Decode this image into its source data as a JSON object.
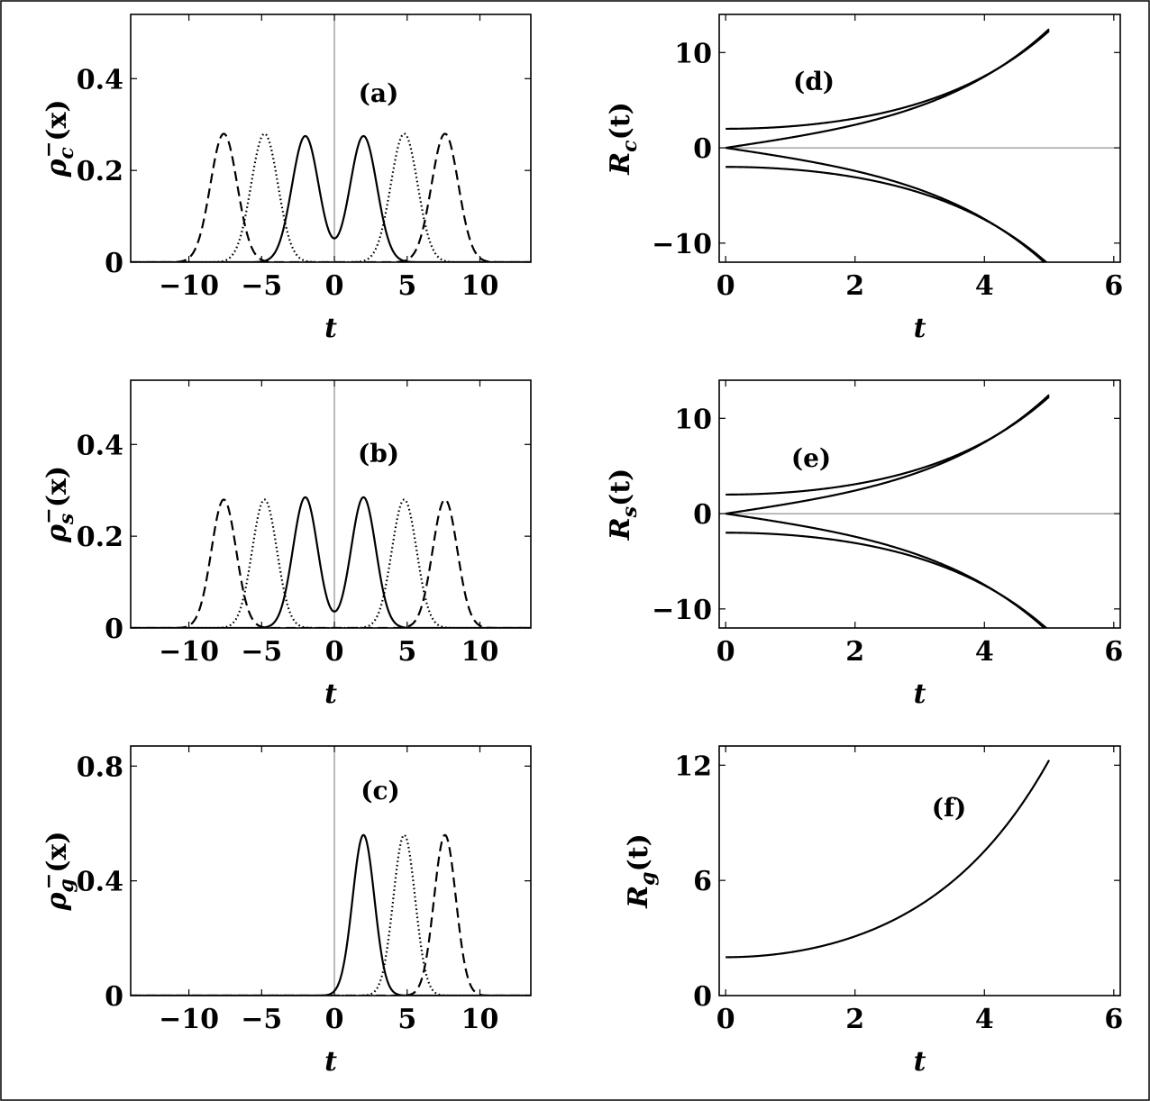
{
  "chart_data": [
    {
      "id": "a",
      "type": "line",
      "panel_label": "(a)",
      "xlabel": "t",
      "ylabel_parts": [
        "ρ",
        "c",
        "−",
        "(x)"
      ],
      "xlim": [
        -14,
        13.5
      ],
      "ylim": [
        0,
        0.54
      ],
      "xticks": [
        -10,
        -5,
        0,
        5,
        10
      ],
      "xtick_labels": [
        "−10",
        "−5",
        "0",
        "5",
        "10"
      ],
      "yticks": [
        0,
        0.2,
        0.4
      ],
      "ytick_labels": [
        "0",
        "0.2",
        "0.4"
      ],
      "zero_lines": [
        "x"
      ],
      "series": [
        {
          "style": "solid",
          "shape": "gauss",
          "centers": [
            -2,
            2
          ],
          "amplitude": 0.275,
          "sigma": 0.92
        },
        {
          "style": "dotted",
          "shape": "gauss",
          "centers": [
            -4.8,
            4.8
          ],
          "amplitude": 0.28,
          "sigma": 0.92
        },
        {
          "style": "dashed",
          "shape": "gauss",
          "centers": [
            -7.6,
            7.6
          ],
          "amplitude": 0.28,
          "sigma": 0.92
        }
      ]
    },
    {
      "id": "b",
      "type": "line",
      "panel_label": "(b)",
      "xlabel": "t",
      "ylabel_parts": [
        "ρ",
        "s",
        "−",
        "(x)"
      ],
      "xlim": [
        -14,
        13.5
      ],
      "ylim": [
        0,
        0.54
      ],
      "xticks": [
        -10,
        -5,
        0,
        5,
        10
      ],
      "xtick_labels": [
        "−10",
        "−5",
        "0",
        "5",
        "10"
      ],
      "yticks": [
        0,
        0.2,
        0.4
      ],
      "ytick_labels": [
        "0",
        "0.2",
        "0.4"
      ],
      "zero_lines": [
        "x"
      ],
      "series": [
        {
          "style": "solid",
          "shape": "gauss",
          "centers": [
            -2,
            2
          ],
          "amplitude": 0.285,
          "sigma": 0.85
        },
        {
          "style": "dotted",
          "shape": "gauss",
          "centers": [
            -4.8,
            4.8
          ],
          "amplitude": 0.28,
          "sigma": 0.85
        },
        {
          "style": "dashed",
          "shape": "gauss",
          "centers": [
            -7.6,
            7.6
          ],
          "amplitude": 0.28,
          "sigma": 0.85
        }
      ]
    },
    {
      "id": "c",
      "type": "line",
      "panel_label": "(c)",
      "xlabel": "t",
      "ylabel_parts": [
        "ρ",
        "g",
        "−",
        "(x)"
      ],
      "xlim": [
        -14,
        13.5
      ],
      "ylim": [
        0,
        0.87
      ],
      "xticks": [
        -10,
        -5,
        0,
        5,
        10
      ],
      "xtick_labels": [
        "−10",
        "−5",
        "0",
        "5",
        "10"
      ],
      "yticks": [
        0,
        0.4,
        0.8
      ],
      "ytick_labels": [
        "0",
        "0.4",
        "0.8"
      ],
      "zero_lines": [
        "x"
      ],
      "series": [
        {
          "style": "solid",
          "shape": "gauss",
          "centers": [
            2
          ],
          "amplitude": 0.56,
          "sigma": 0.75
        },
        {
          "style": "dotted",
          "shape": "gauss",
          "centers": [
            4.8
          ],
          "amplitude": 0.56,
          "sigma": 0.75
        },
        {
          "style": "dashed",
          "shape": "gauss",
          "centers": [
            7.6
          ],
          "amplitude": 0.56,
          "sigma": 0.75
        }
      ]
    },
    {
      "id": "d",
      "type": "line",
      "panel_label": "(d)",
      "xlabel": "t",
      "ylabel_parts": [
        "R",
        "c",
        "",
        "(t)"
      ],
      "xlim": [
        -0.1,
        6.1
      ],
      "ylim": [
        -12,
        14
      ],
      "xticks": [
        0,
        2,
        4,
        6
      ],
      "xtick_labels": [
        "0",
        "2",
        "4",
        "6"
      ],
      "yticks": [
        -10,
        0,
        10
      ],
      "ytick_labels": [
        "−10",
        "0",
        "10"
      ],
      "zero_lines": [
        "y"
      ],
      "series": [
        {
          "style": "solid",
          "shape": "cosh",
          "a": 2,
          "sign": 1,
          "t_max": 5
        },
        {
          "style": "solid",
          "shape": "sinh",
          "a": 2,
          "sign": 1,
          "t_max": 5
        },
        {
          "style": "solid",
          "shape": "cosh",
          "a": 2,
          "sign": -1,
          "t_max": 5
        },
        {
          "style": "solid",
          "shape": "sinh",
          "a": 2,
          "sign": -1,
          "t_max": 5
        }
      ]
    },
    {
      "id": "e",
      "type": "line",
      "panel_label": "(e)",
      "xlabel": "t",
      "ylabel_parts": [
        "R",
        "s",
        "",
        "(t)"
      ],
      "xlim": [
        -0.1,
        6.1
      ],
      "ylim": [
        -12,
        14
      ],
      "xticks": [
        0,
        2,
        4,
        6
      ],
      "xtick_labels": [
        "0",
        "2",
        "4",
        "6"
      ],
      "yticks": [
        -10,
        0,
        10
      ],
      "ytick_labels": [
        "−10",
        "0",
        "10"
      ],
      "zero_lines": [
        "y"
      ],
      "series": [
        {
          "style": "solid",
          "shape": "cosh",
          "a": 2,
          "sign": 1,
          "t_max": 5
        },
        {
          "style": "solid",
          "shape": "sinh",
          "a": 2,
          "sign": 1,
          "t_max": 5
        },
        {
          "style": "solid",
          "shape": "cosh",
          "a": 2,
          "sign": -1,
          "t_max": 5
        },
        {
          "style": "solid",
          "shape": "sinh",
          "a": 2,
          "sign": -1,
          "t_max": 5
        }
      ]
    },
    {
      "id": "f",
      "type": "line",
      "panel_label": "(f)",
      "xlabel": "t",
      "ylabel_parts": [
        "R",
        "g",
        "",
        "(t)"
      ],
      "xlim": [
        -0.1,
        6.1
      ],
      "ylim": [
        0,
        13
      ],
      "xticks": [
        0,
        2,
        4,
        6
      ],
      "xtick_labels": [
        "0",
        "2",
        "4",
        "6"
      ],
      "yticks": [
        0,
        6,
        12
      ],
      "ytick_labels": [
        "0",
        "6",
        "12"
      ],
      "zero_lines": [],
      "series": [
        {
          "style": "solid",
          "shape": "cosh",
          "a": 2,
          "sign": 1,
          "t_max": 5
        }
      ]
    }
  ]
}
